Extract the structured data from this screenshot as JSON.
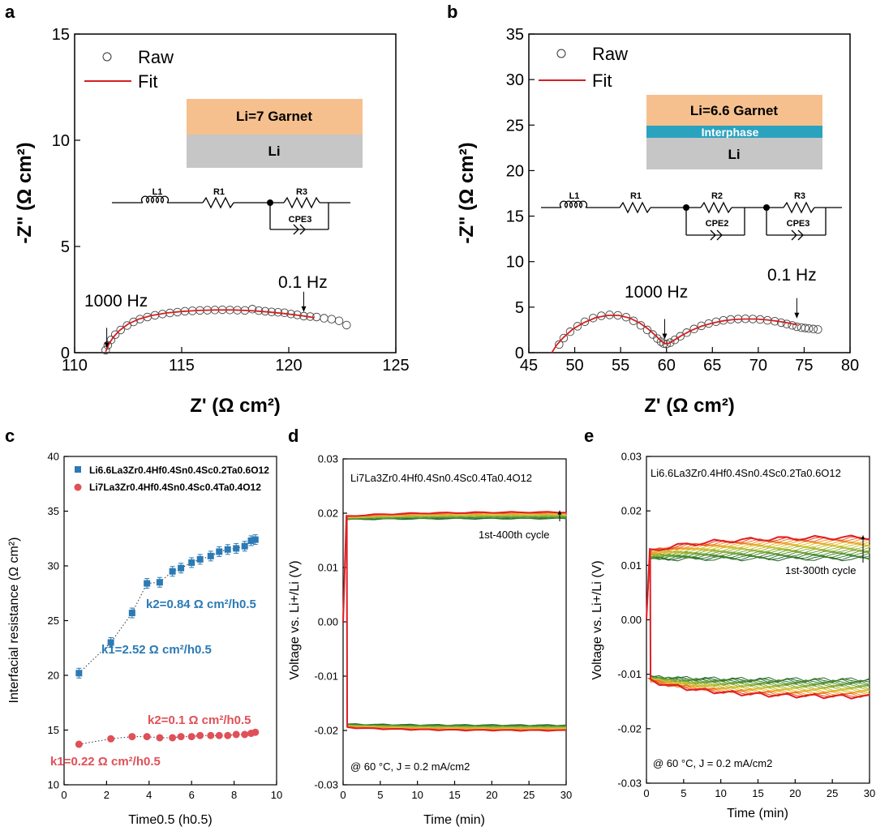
{
  "panels": {
    "a": {
      "letter": "a"
    },
    "b": {
      "letter": "b"
    },
    "c": {
      "letter": "c"
    },
    "d": {
      "letter": "d"
    },
    "e": {
      "letter": "e"
    }
  },
  "colors": {
    "fit": "#d42020",
    "garnet": "#f6c08e",
    "li_layer": "#c6c6c6",
    "interphase": "#2ba3bf",
    "blue": "#2b7ab5",
    "red": "#e05058"
  },
  "chart_data": [
    {
      "id": "a",
      "type": "scatter",
      "xlabel": "Z' (Ω cm²)",
      "ylabel": "-Z\" (Ω cm²)",
      "xlim": [
        110,
        125
      ],
      "ylim": [
        0,
        15
      ],
      "xticks": [
        110,
        115,
        120,
        125
      ],
      "yticks": [
        0,
        5,
        10,
        15
      ],
      "legend": {
        "raw": "Raw",
        "fit": "Fit",
        "position": "top-left"
      },
      "inset": {
        "top_layer": "Li=7 Garnet",
        "bottom_layer": "Li",
        "circuit": [
          "L1",
          "R1",
          "R3",
          "CPE3"
        ]
      },
      "annotations": [
        {
          "text": "1000 Hz",
          "x": 111.5,
          "y": 0.1
        },
        {
          "text": "0.1 Hz",
          "x": 120.7,
          "y": 1.8
        }
      ],
      "series": [
        {
          "name": "Raw",
          "x": [
            111.45,
            111.55,
            111.7,
            111.9,
            112.15,
            112.45,
            112.75,
            113.05,
            113.4,
            113.75,
            114.1,
            114.45,
            114.8,
            115.15,
            115.5,
            115.85,
            116.2,
            116.55,
            116.9,
            117.25,
            117.6,
            117.95,
            118.3,
            118.6,
            118.9,
            119.2,
            119.5,
            119.8,
            120.1,
            120.4,
            120.7,
            121.0,
            121.3,
            121.65,
            122.0,
            122.35,
            122.7
          ],
          "y": [
            0.12,
            0.35,
            0.6,
            0.85,
            1.07,
            1.28,
            1.45,
            1.58,
            1.68,
            1.76,
            1.82,
            1.87,
            1.91,
            1.95,
            1.97,
            1.99,
            2.0,
            2.01,
            2.02,
            2.01,
            2.0,
            1.99,
            2.05,
            1.98,
            1.95,
            1.92,
            1.9,
            1.88,
            1.82,
            1.78,
            1.72,
            1.7,
            1.68,
            1.62,
            1.58,
            1.5,
            1.3
          ]
        },
        {
          "name": "Fit",
          "x": [
            111.45,
            111.6,
            111.8,
            112.1,
            112.5,
            113.0,
            113.6,
            114.3,
            115.0,
            115.8,
            116.6,
            117.4,
            118.2,
            119.0,
            119.8,
            120.6,
            121.2
          ],
          "y": [
            0.05,
            0.4,
            0.72,
            1.05,
            1.35,
            1.58,
            1.75,
            1.87,
            1.94,
            1.99,
            2.01,
            2.01,
            1.98,
            1.92,
            1.84,
            1.74,
            1.65
          ]
        }
      ]
    },
    {
      "id": "b",
      "type": "scatter",
      "xlabel": "Z' (Ω cm²)",
      "ylabel": "-Z\" (Ω cm²)",
      "xlim": [
        45,
        80
      ],
      "ylim": [
        0,
        35
      ],
      "xticks": [
        45,
        50,
        55,
        60,
        65,
        70,
        75,
        80
      ],
      "yticks": [
        0,
        5,
        10,
        15,
        20,
        25,
        30,
        35
      ],
      "legend": {
        "raw": "Raw",
        "fit": "Fit",
        "position": "top-left"
      },
      "inset": {
        "top_layer": "Li=6.6 Garnet",
        "middle_layer": "Interphase",
        "bottom_layer": "Li",
        "circuit": [
          "L1",
          "R1",
          "R2",
          "CPE2",
          "R3",
          "CPE3"
        ]
      },
      "annotations": [
        {
          "text": "1000 Hz",
          "x": 59.8,
          "y": 1.2
        },
        {
          "text": "0.1 Hz",
          "x": 74.2,
          "y": 3.5
        }
      ],
      "series": [
        {
          "name": "Raw",
          "x": [
            48.3,
            48.8,
            49.5,
            50.3,
            51.1,
            52.0,
            52.9,
            53.8,
            54.7,
            55.6,
            56.4,
            57.2,
            57.9,
            58.5,
            59.0,
            59.4,
            59.7,
            60.0,
            60.4,
            60.9,
            61.5,
            62.2,
            63.0,
            63.8,
            64.6,
            65.4,
            66.2,
            67.0,
            67.8,
            68.6,
            69.4,
            70.2,
            71.0,
            71.8,
            72.5,
            73.1,
            73.7,
            74.2,
            74.7,
            75.1,
            75.5,
            76.0,
            76.5
          ],
          "y": [
            0.9,
            1.6,
            2.3,
            2.9,
            3.4,
            3.8,
            4.05,
            4.15,
            4.1,
            3.9,
            3.5,
            3.0,
            2.5,
            2.0,
            1.55,
            1.2,
            1.0,
            0.95,
            1.1,
            1.4,
            1.8,
            2.2,
            2.6,
            2.95,
            3.2,
            3.4,
            3.55,
            3.65,
            3.7,
            3.72,
            3.7,
            3.65,
            3.55,
            3.45,
            3.3,
            3.15,
            3.0,
            2.85,
            2.75,
            2.7,
            2.65,
            2.6,
            2.55
          ]
        },
        {
          "name": "Fit",
          "x": [
            47.5,
            48.0,
            48.8,
            49.8,
            51.0,
            52.3,
            53.6,
            54.8,
            56.0,
            57.1,
            58.0,
            58.8,
            59.4,
            59.8,
            60.2,
            60.8,
            61.6,
            62.6,
            63.8,
            65.0,
            66.2,
            67.4,
            68.6,
            69.8,
            71.0,
            72.2,
            73.3,
            74.3
          ],
          "y": [
            0.0,
            0.8,
            1.7,
            2.6,
            3.3,
            3.85,
            4.1,
            4.1,
            3.8,
            3.25,
            2.6,
            1.9,
            1.3,
            1.0,
            1.0,
            1.35,
            1.85,
            2.4,
            2.9,
            3.25,
            3.5,
            3.65,
            3.7,
            3.7,
            3.6,
            3.45,
            3.25,
            3.05
          ]
        }
      ]
    },
    {
      "id": "c",
      "type": "scatter",
      "xlabel": "Time0.5 (h0.5)",
      "ylabel": "Interfacial resistance (Ω cm²)",
      "xlim": [
        0,
        10
      ],
      "ylim": [
        10,
        40
      ],
      "xticks": [
        0,
        2,
        4,
        6,
        8,
        10
      ],
      "yticks": [
        10,
        15,
        20,
        25,
        30,
        35,
        40
      ],
      "legend": {
        "position": "top-left"
      },
      "series": [
        {
          "name": "Li6.6La3Zr0.4Hf0.4Sn0.4Sc0.2Ta0.6O12",
          "color": "#2b7ab5",
          "marker": "square",
          "x": [
            0.7,
            2.2,
            3.2,
            3.9,
            4.5,
            5.1,
            5.5,
            6.0,
            6.4,
            6.9,
            7.3,
            7.7,
            8.1,
            8.5,
            8.8,
            9.0
          ],
          "y": [
            20.2,
            23.0,
            25.7,
            28.4,
            28.5,
            29.5,
            29.8,
            30.3,
            30.6,
            30.9,
            31.3,
            31.5,
            31.6,
            31.8,
            32.3,
            32.4
          ]
        },
        {
          "name": "Li7La3Zr0.4Hf0.4Sn0.4Sc0.4Ta0.4O12",
          "color": "#e05058",
          "marker": "circle",
          "x": [
            0.7,
            2.2,
            3.2,
            3.9,
            4.5,
            5.1,
            5.5,
            6.0,
            6.4,
            6.9,
            7.3,
            7.7,
            8.1,
            8.5,
            8.8,
            9.0
          ],
          "y": [
            13.7,
            14.2,
            14.4,
            14.4,
            14.3,
            14.3,
            14.4,
            14.4,
            14.5,
            14.5,
            14.5,
            14.5,
            14.6,
            14.6,
            14.7,
            14.8
          ]
        }
      ],
      "annotations": [
        {
          "text": "k2=0.84 Ω cm²/h0.5",
          "color": "#2b7ab5"
        },
        {
          "text": "k1=2.52 Ω cm²/h0.5",
          "color": "#2b7ab5"
        },
        {
          "text": "k2=0.1 Ω cm²/h0.5",
          "color": "#e05058"
        },
        {
          "text": "k1=0.22 Ω cm²/h0.5",
          "color": "#e05058"
        }
      ]
    },
    {
      "id": "d",
      "type": "line",
      "xlabel": "Time (min)",
      "ylabel": "Voltage vs. Li+/Li (V)",
      "xlim": [
        0,
        30
      ],
      "ylim": [
        -0.03,
        0.03
      ],
      "xticks": [
        0,
        5,
        10,
        15,
        20,
        25,
        30
      ],
      "yticks": [
        -0.03,
        -0.02,
        -0.01,
        0.0,
        0.01,
        0.02,
        0.03
      ],
      "composition": "Li7La3Zr0.4Hf0.4Sn0.4Sc0.4Ta0.4O12",
      "cycle_label": "1st-400th cycle",
      "condition": "@ 60 °C, J = 0.2 mA/cm2",
      "upper": {
        "first": [
          0.0188,
          0.019
        ],
        "last": [
          0.0194,
          0.0202
        ]
      },
      "lower": {
        "first": [
          -0.0188,
          -0.019
        ],
        "last": [
          -0.0194,
          -0.02
        ]
      }
    },
    {
      "id": "e",
      "type": "line",
      "xlabel": "Time (min)",
      "ylabel": "Voltage vs. Li+/Li (V)",
      "xlim": [
        0,
        30
      ],
      "ylim": [
        -0.03,
        0.03
      ],
      "xticks": [
        0,
        5,
        10,
        15,
        20,
        25,
        30
      ],
      "yticks": [
        -0.03,
        -0.02,
        -0.01,
        0.0,
        0.01,
        0.02,
        0.03
      ],
      "composition": "Li6.6La3Zr0.4Hf0.4Sn0.4Sc0.2Ta0.6O12",
      "cycle_label": "1st-300th cycle",
      "condition": "@ 60 °C, J = 0.2 mA/cm2",
      "upper": {
        "first": [
          0.0112,
          0.0112
        ],
        "last": [
          0.0125,
          0.0152
        ]
      },
      "lower": {
        "first": [
          -0.0105,
          -0.011
        ],
        "last": [
          -0.011,
          -0.0142
        ]
      }
    }
  ]
}
